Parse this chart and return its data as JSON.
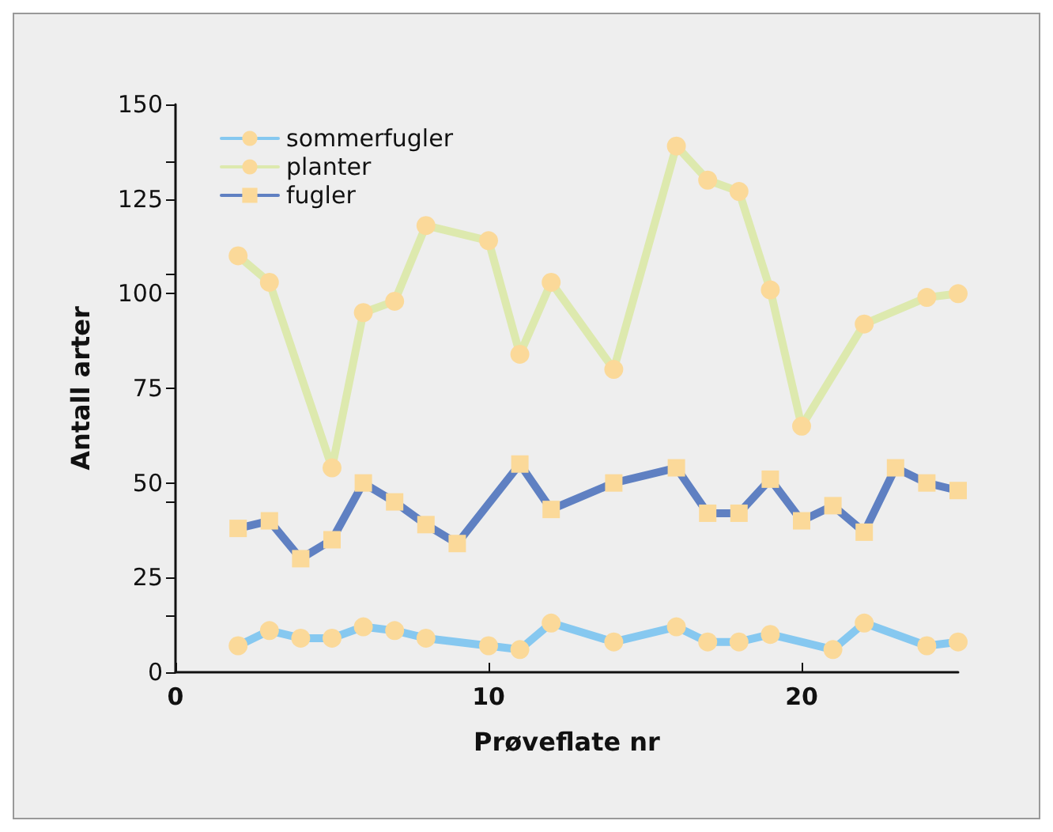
{
  "chart_data": {
    "type": "line",
    "xlabel": "Prøveflate nr",
    "ylabel": "Antall arter",
    "xlim": [
      0,
      25
    ],
    "xticks": [
      0,
      10,
      20
    ],
    "ylim": [
      0,
      150
    ],
    "yticks": [
      0,
      25,
      50,
      75,
      100,
      125,
      150
    ],
    "grid": false,
    "legend": "top left",
    "line_style": "solid",
    "series": [
      {
        "name": "sommerfugler",
        "color": "#86c8f0",
        "marker": "circle",
        "x": [
          2,
          3,
          4,
          5,
          6,
          7,
          8,
          10,
          11,
          12,
          14,
          16,
          17,
          18,
          19,
          21,
          22,
          24,
          25
        ],
        "values": [
          7,
          11,
          9,
          9,
          12,
          11,
          9,
          7,
          6,
          13,
          8,
          12,
          8,
          8,
          10,
          6,
          13,
          7,
          8
        ]
      },
      {
        "name": "planter",
        "color": "#dde9ae",
        "marker": "circle",
        "x": [
          2,
          3,
          5,
          6,
          7,
          8,
          10,
          11,
          12,
          14,
          16,
          17,
          18,
          19,
          20,
          22,
          24,
          25
        ],
        "values": [
          110,
          103,
          54,
          95,
          98,
          118,
          114,
          84,
          103,
          80,
          139,
          130,
          127,
          101,
          65,
          92,
          99,
          100
        ]
      },
      {
        "name": "fugler",
        "color": "#5f80c2",
        "marker": "square",
        "x": [
          2,
          3,
          4,
          5,
          6,
          7,
          8,
          9,
          11,
          12,
          14,
          16,
          17,
          18,
          19,
          20,
          21,
          22,
          23,
          24,
          25
        ],
        "values": [
          38,
          40,
          30,
          35,
          50,
          45,
          39,
          34,
          55,
          43,
          50,
          54,
          42,
          42,
          51,
          40,
          44,
          37,
          54,
          50,
          48
        ]
      }
    ]
  }
}
